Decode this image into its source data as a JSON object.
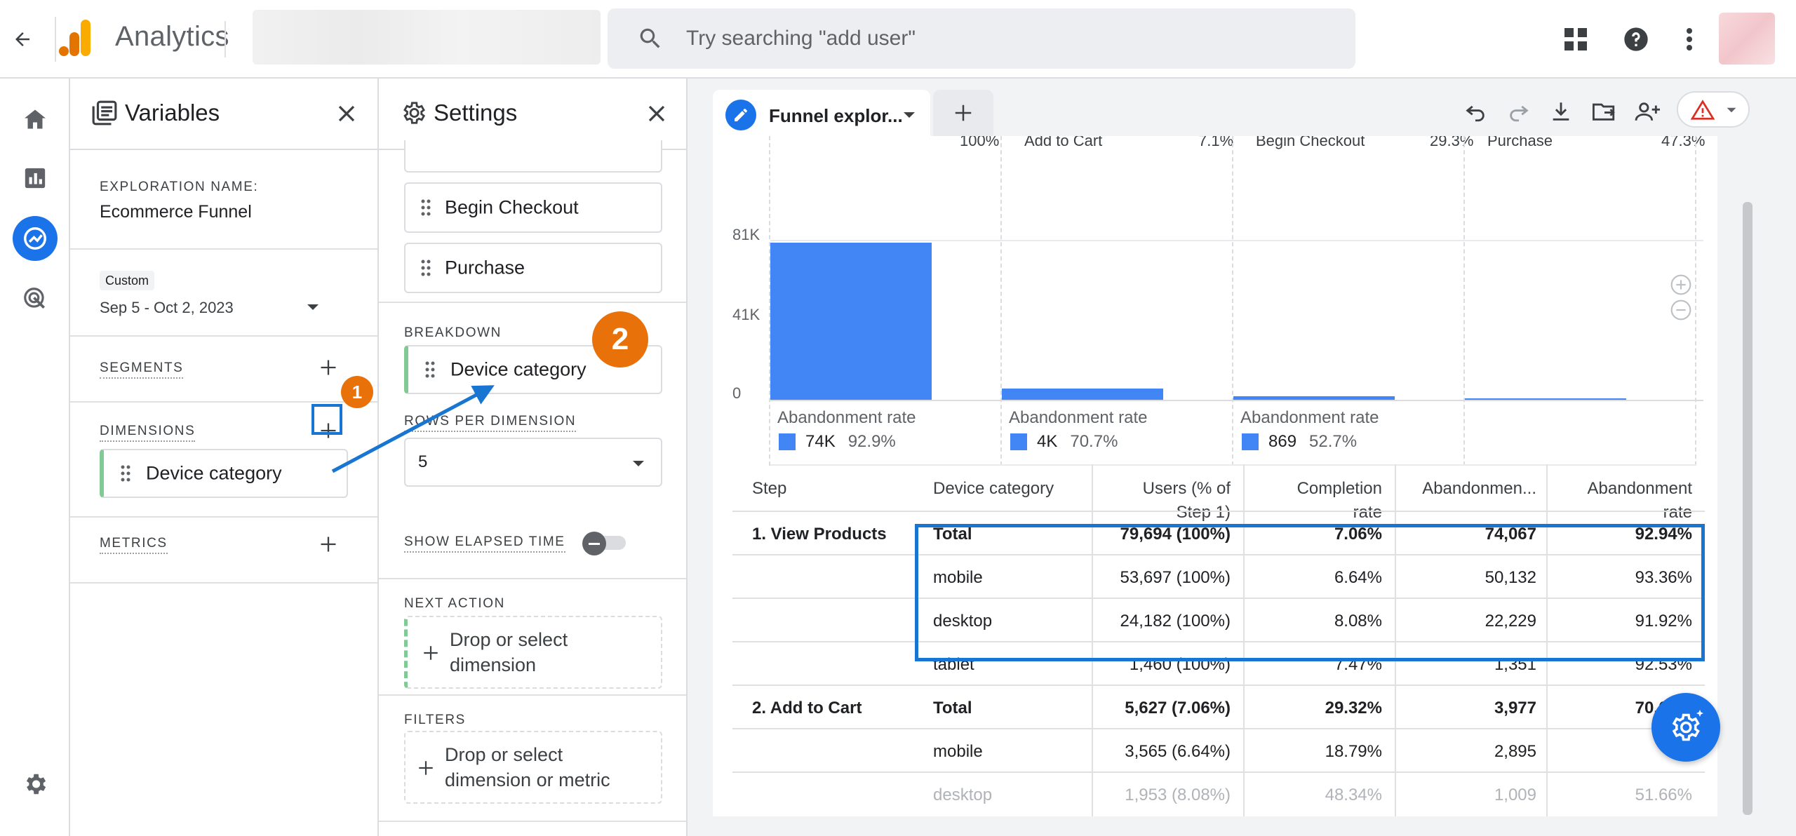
{
  "header": {
    "app_title": "Analytics",
    "search_placeholder": "Try searching \"add user\""
  },
  "variables": {
    "title": "Variables",
    "exploration_name_label": "EXPLORATION NAME:",
    "exploration_name": "Ecommerce Funnel",
    "date_badge": "Custom",
    "date_range": "Sep 5 - Oct 2, 2023",
    "segments_label": "SEGMENTS",
    "dimensions_label": "DIMENSIONS",
    "dimension_item": "Device category",
    "metrics_label": "METRICS"
  },
  "settings": {
    "title": "Settings",
    "steps": [
      "Begin Checkout",
      "Purchase"
    ],
    "breakdown_label": "BREAKDOWN",
    "breakdown_value": "Device category",
    "rows_per_dimension_label": "ROWS PER DIMENSION",
    "rows_per_dimension_value": "5",
    "show_elapsed_time_label": "SHOW ELAPSED TIME",
    "show_elapsed_time_on": false,
    "next_action_label": "NEXT ACTION",
    "next_action_placeholder": "Drop or select dimension",
    "filters_label": "FILTERS",
    "filters_placeholder": "Drop or select dimension or metric"
  },
  "tab": {
    "label": "Funnel explor..."
  },
  "annotations": {
    "badge_1": "1",
    "badge_2": "2"
  },
  "chart_data": {
    "type": "bar",
    "categories": [
      "View Products",
      "Add to Cart",
      "Begin Checkout",
      "Purchase"
    ],
    "values": [
      79694,
      5627,
      1650,
      780
    ],
    "ylim": [
      0,
      81000
    ],
    "y_ticks": [
      "81K",
      "41K",
      "0"
    ],
    "partial_headers": [
      "100%",
      "Add to Cart",
      "7.1%",
      "Begin Checkout",
      "29.3%",
      "Purchase",
      "47.3%"
    ],
    "abandonment": [
      {
        "label": "Abandonment rate",
        "count": "74K",
        "rate": "92.9%"
      },
      {
        "label": "Abandonment rate",
        "count": "4K",
        "rate": "70.7%"
      },
      {
        "label": "Abandonment rate",
        "count": "869",
        "rate": "52.7%"
      }
    ],
    "bar_color": "#4285f4"
  },
  "table": {
    "headers": [
      "Step",
      "Device category",
      "Users (% of Step 1)",
      "Completion rate",
      "Abandonmen...",
      "Abandonment rate"
    ],
    "rows": [
      {
        "step": "1. View Products",
        "device": "Total",
        "users": "79,694 (100%)",
        "completion": "7.06%",
        "abandonments": "74,067",
        "abandonment_rate": "92.94%"
      },
      {
        "step": "",
        "device": "mobile",
        "users": "53,697 (100%)",
        "completion": "6.64%",
        "abandonments": "50,132",
        "abandonment_rate": "93.36%"
      },
      {
        "step": "",
        "device": "desktop",
        "users": "24,182 (100%)",
        "completion": "8.08%",
        "abandonments": "22,229",
        "abandonment_rate": "91.92%"
      },
      {
        "step": "",
        "device": "tablet",
        "users": "1,460 (100%)",
        "completion": "7.47%",
        "abandonments": "1,351",
        "abandonment_rate": "92.53%"
      },
      {
        "step": "2. Add to Cart",
        "device": "Total",
        "users": "5,627 (7.06%)",
        "completion": "29.32%",
        "abandonments": "3,977",
        "abandonment_rate": "70.68%"
      },
      {
        "step": "",
        "device": "mobile",
        "users": "3,565 (6.64%)",
        "completion": "18.79%",
        "abandonments": "2,895",
        "abandonment_rate": "81."
      },
      {
        "step": "",
        "device": "desktop",
        "users": "1,953 (8.08%)",
        "completion": "48.34%",
        "abandonments": "1,009",
        "abandonment_rate": "51.66%"
      }
    ]
  },
  "colors": {
    "accent": "#1a73e8",
    "badge": "#e8710a",
    "annotation_blue": "#1875d1"
  }
}
